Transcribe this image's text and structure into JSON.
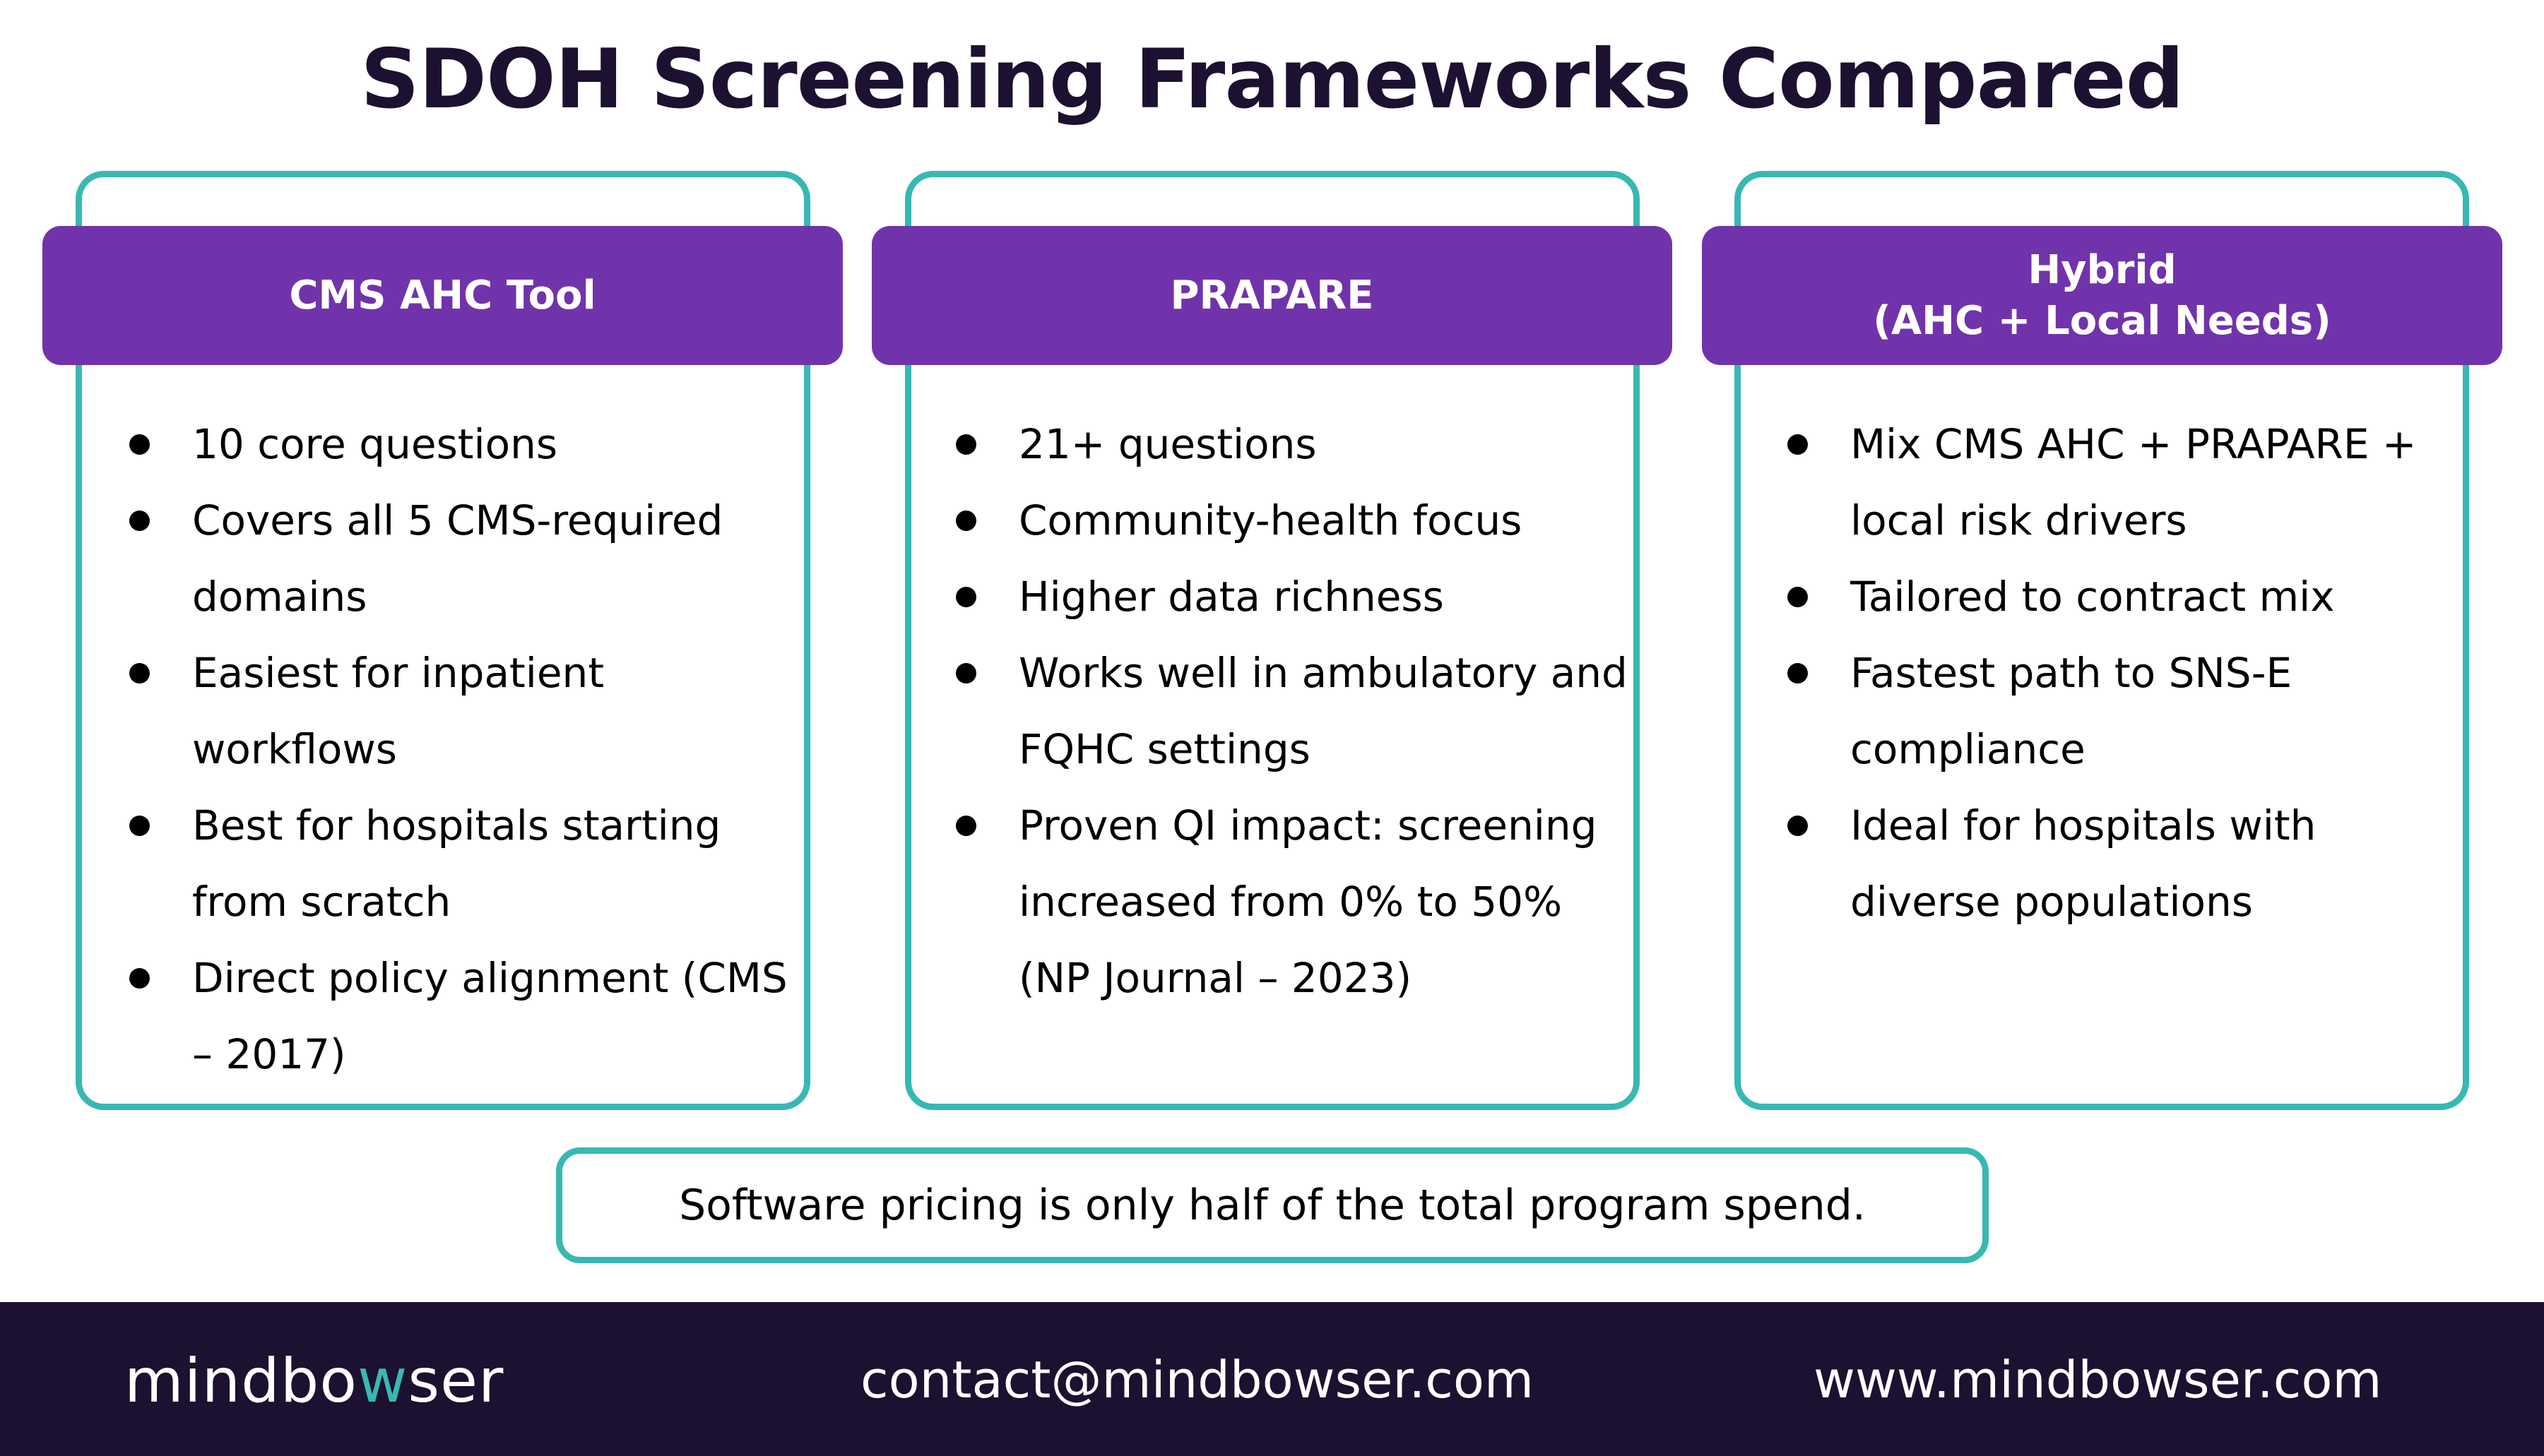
{
  "title": "SDOH Screening Frameworks Compared",
  "colors": {
    "title": "#1c1130",
    "card_border": "#38b8b3",
    "header_bg": "#7133ab",
    "footer_bg": "#1c1130",
    "logo_accent": "#38b8b3"
  },
  "cards": [
    {
      "header": "CMS AHC Tool",
      "bullets": [
        "10 core questions",
        "Covers all 5 CMS-required domains",
        "Easiest for inpatient workflows",
        "Best for hospitals starting from scratch",
        "Direct policy alignment (CMS – 2017)"
      ]
    },
    {
      "header": "PRAPARE",
      "bullets": [
        "21+ questions",
        "Community-health focus",
        "Higher data richness",
        "Works well in ambulatory and FQHC settings",
        "Proven QI impact: screening increased from 0% to 50% (NP Journal – 2023)"
      ]
    },
    {
      "header": "Hybrid\n(AHC + Local Needs)",
      "bullets": [
        "Mix CMS AHC + PRAPARE + local risk drivers",
        "Tailored to contract mix",
        "Fastest path to SNS-E compliance",
        "Ideal for hospitals with diverse populations"
      ]
    }
  ],
  "callout": "Software pricing is only half of the total program spend.",
  "footer": {
    "logo": {
      "before": "mindbo",
      "accent": "w",
      "after": "ser"
    },
    "email": "contact@mindbowser.com",
    "website": "www.mindbowser.com"
  }
}
